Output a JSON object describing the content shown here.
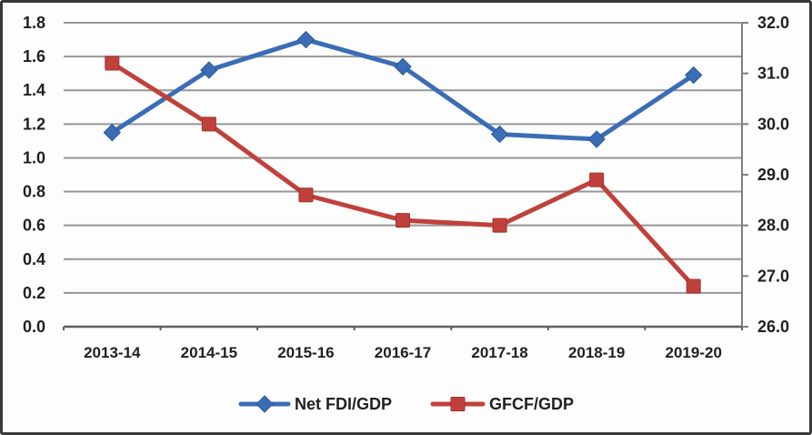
{
  "chart_data": {
    "type": "line",
    "title": "",
    "xlabel": "",
    "ylabel": "",
    "grid": true,
    "legend_position": "bottom",
    "categories": [
      "2013-14",
      "2014-15",
      "2015-16",
      "2016-17",
      "2017-18",
      "2018-19",
      "2019-20"
    ],
    "series": [
      {
        "name": "Net FDI/GDP",
        "axis": "left",
        "color": "#3a6db5",
        "edge_color": "#2e5894",
        "marker": "diamond",
        "values": [
          1.15,
          1.52,
          1.7,
          1.54,
          1.14,
          1.11,
          1.49
        ]
      },
      {
        "name": "GFCF/GDP",
        "axis": "right",
        "color": "#c0413b",
        "edge_color": "#9e332e",
        "marker": "square",
        "values": [
          31.2,
          30.0,
          28.6,
          28.1,
          28.0,
          28.9,
          26.8
        ]
      }
    ],
    "left_axis": {
      "min": 0.0,
      "max": 1.8,
      "step": 0.2,
      "decimals": 1
    },
    "right_axis": {
      "min": 26.0,
      "max": 32.0,
      "step": 1.0,
      "decimals": 1
    }
  },
  "colors": {
    "grid_line": "#969696",
    "baseline": "#5f5f5f",
    "axis_line": "#7f7f7f",
    "text": "#1f1f1f",
    "background": "#fdfdfd",
    "frame": "#3a3a3a"
  }
}
